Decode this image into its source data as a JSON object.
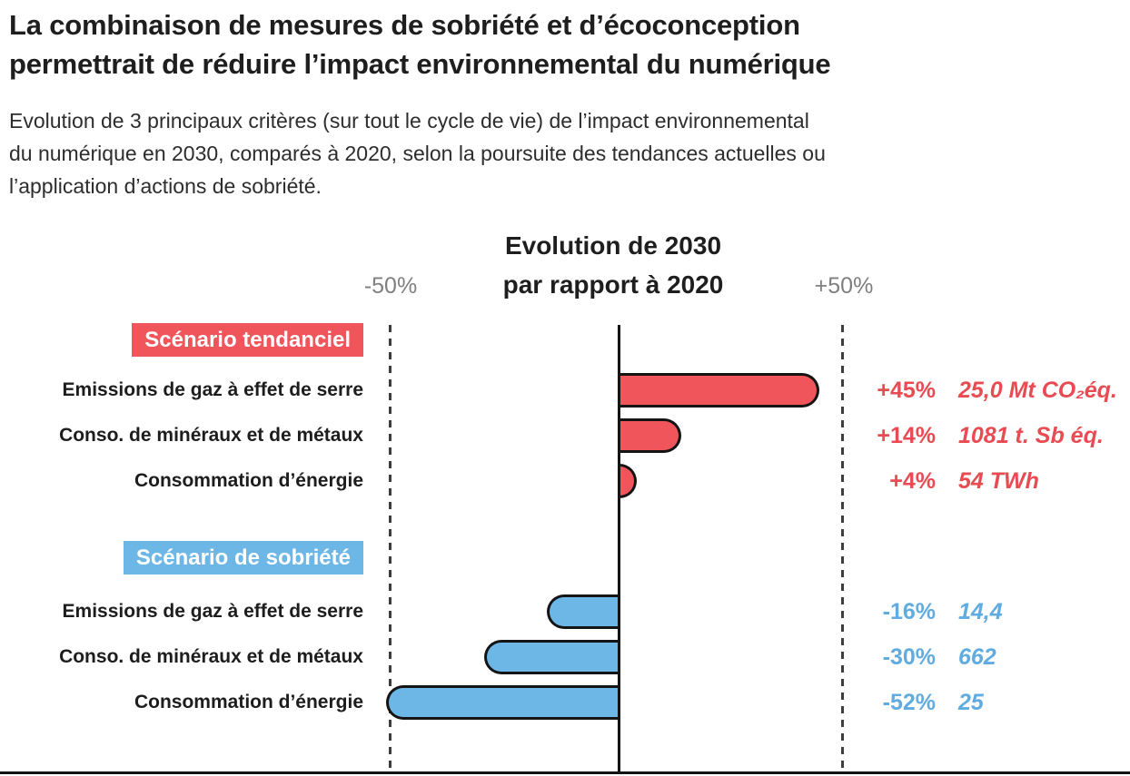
{
  "header": {
    "title": "La combinaison de mesures de sobriété et d’écoconception\npermettrait de réduire l’impact environnemental du numérique",
    "subtitle": "Evolution de 3 principaux critères (sur tout le cycle de vie) de l’impact environnemental\ndu numérique en 2030, comparés à 2020, selon la poursuite des tendances actuelles ou\nl’application d’actions de sobriété."
  },
  "chart_data": {
    "type": "bar",
    "orientation": "horizontal",
    "axis_title": "Evolution de 2030\npar rapport à 2020",
    "xlim": [
      -50,
      50
    ],
    "x_ticks": [
      {
        "label": "-50%",
        "value": -50
      },
      {
        "label": "+50%",
        "value": 50
      }
    ],
    "zero_line": true,
    "groups": [
      {
        "name": "Scénario tendanciel",
        "color": "#ef555a",
        "text_color": "#e84b52",
        "rows": [
          {
            "label": "Emissions de gaz à effet de serre",
            "value_pct": 45,
            "pct_label": "+45%",
            "unit_label": "25,0 Mt CO₂éq."
          },
          {
            "label": "Conso. de minéraux et de métaux",
            "value_pct": 14,
            "pct_label": "+14%",
            "unit_label": "1081 t. Sb éq."
          },
          {
            "label": "Consommation d’énergie",
            "value_pct": 4,
            "pct_label": "+4%",
            "unit_label": "54 TWh"
          }
        ]
      },
      {
        "name": "Scénario de sobriété",
        "color": "#6db7e7",
        "text_color": "#60abdf",
        "rows": [
          {
            "label": "Emissions de gaz à effet de serre",
            "value_pct": -16,
            "pct_label": "-16%",
            "unit_label": "14,4"
          },
          {
            "label": "Conso. de minéraux et de métaux",
            "value_pct": -30,
            "pct_label": "-30%",
            "unit_label": "662"
          },
          {
            "label": "Consommation d’énergie",
            "value_pct": -52,
            "pct_label": "-52%",
            "unit_label": "25"
          }
        ]
      }
    ]
  },
  "colors": {
    "line": "#141414",
    "tick_gray": "#7f7f7f",
    "title_text": "#1e1e1e"
  }
}
